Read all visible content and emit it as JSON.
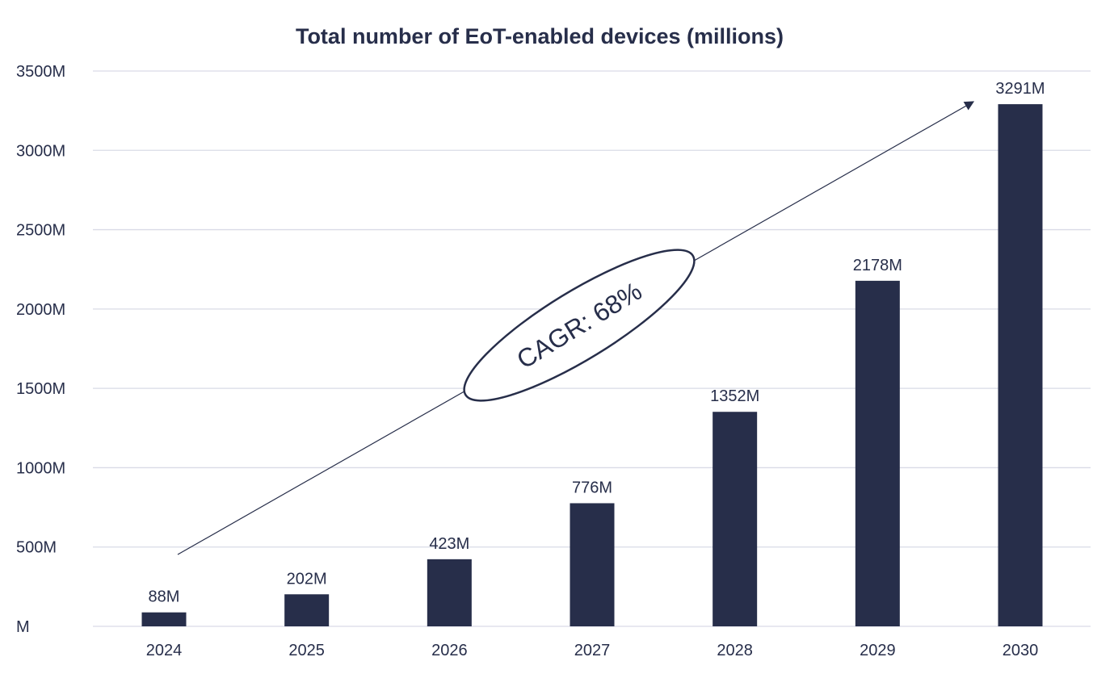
{
  "chart_data": {
    "type": "bar",
    "title": "Total number of EoT-enabled devices (millions)",
    "categories": [
      "2024",
      "2025",
      "2026",
      "2027",
      "2028",
      "2029",
      "2030"
    ],
    "values": [
      88,
      202,
      423,
      776,
      1352,
      2178,
      3291
    ],
    "data_labels": [
      "88M",
      "202M",
      "423M",
      "776M",
      "1352M",
      "2178M",
      "3291M"
    ],
    "y_ticks": [
      0,
      500,
      1000,
      1500,
      2000,
      2500,
      3000,
      3500
    ],
    "y_tick_labels": [
      "M",
      "500M",
      "1000M",
      "1500M",
      "2000M",
      "2500M",
      "3000M",
      "3500M"
    ],
    "ylim": [
      0,
      3500
    ],
    "xlabel": "",
    "ylabel": "",
    "grid": true,
    "legend": "none",
    "annotation": "CAGR: 68%",
    "colors": {
      "bar": "#272e4a",
      "grid": "#d9dbe6",
      "text": "#272e4a"
    }
  }
}
